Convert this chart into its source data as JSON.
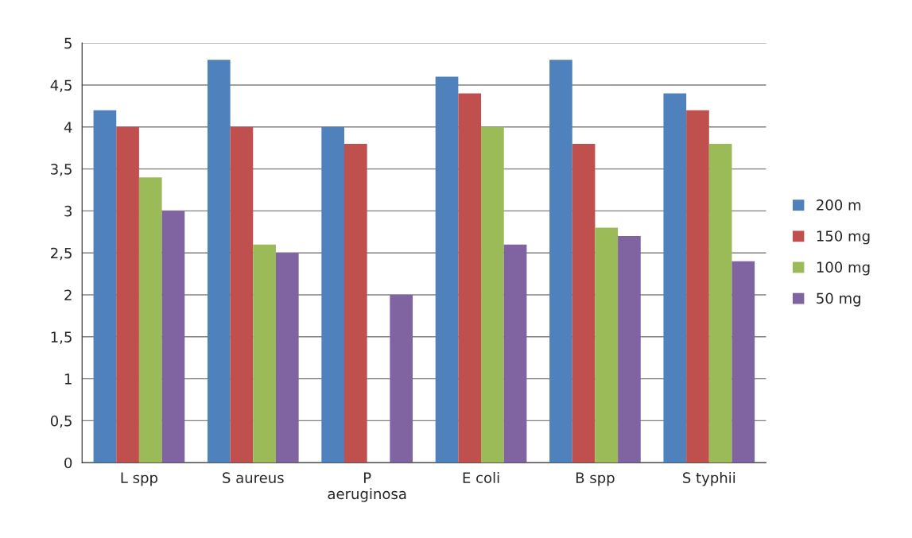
{
  "chart_data": {
    "type": "bar",
    "categories": [
      "L spp",
      "S aureus",
      "P\naeruginosa",
      "E coli",
      "B spp",
      "S typhii"
    ],
    "series": [
      {
        "name": "200 m",
        "color": "#4f81bd",
        "values": [
          4.2,
          4.8,
          4.0,
          4.6,
          4.8,
          4.4
        ]
      },
      {
        "name": "150 mg",
        "color": "#c0504d",
        "values": [
          4.0,
          4.0,
          3.8,
          4.4,
          3.8,
          4.2
        ]
      },
      {
        "name": "100 mg",
        "color": "#9bbb59",
        "values": [
          3.4,
          2.6,
          0,
          4.0,
          2.8,
          3.8
        ]
      },
      {
        "name": "50 mg",
        "color": "#8064a2",
        "values": [
          3.0,
          2.5,
          2.0,
          2.6,
          2.7,
          2.4
        ]
      }
    ],
    "ylim": [
      0,
      5
    ],
    "yticks": [
      0,
      {
        "value": 0.5,
        "label": "0,5"
      },
      1,
      {
        "value": 1.5,
        "label": "1,5"
      },
      2,
      {
        "value": 2.5,
        "label": "2,5"
      },
      3,
      {
        "value": 3.5,
        "label": "3,5"
      },
      4,
      {
        "value": 4.5,
        "label": "4,5"
      },
      5
    ],
    "grid": "y",
    "legend": "right"
  }
}
